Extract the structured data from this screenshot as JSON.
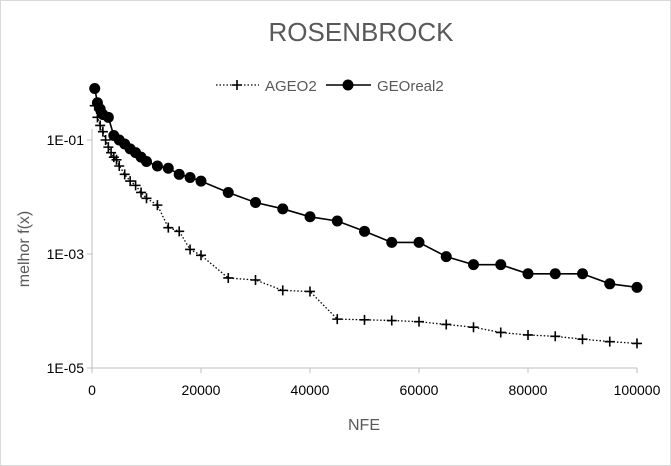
{
  "chart_data": {
    "type": "line",
    "title": "ROSENBROCK",
    "xlabel": "NFE",
    "ylabel": "melhor f(x)",
    "y_scale": "log",
    "xlim": [
      0,
      100000
    ],
    "ylim": [
      1e-05,
      1
    ],
    "x_ticks": [
      0,
      20000,
      40000,
      60000,
      80000,
      100000
    ],
    "x_tick_labels": [
      "0",
      "20000",
      "40000",
      "60000",
      "80000",
      "100000"
    ],
    "y_ticks": [
      0.1,
      0.001,
      1e-05
    ],
    "y_tick_labels": [
      "1E-01",
      "1E-03",
      "1E-05"
    ],
    "grid": false,
    "legend_position": "top",
    "series": [
      {
        "name": "AGEO2",
        "style": "dotted line, plus markers",
        "color": "#000000",
        "x": [
          500,
          1000,
          1500,
          2000,
          2500,
          3000,
          3500,
          4000,
          4500,
          5000,
          6000,
          7000,
          8000,
          9000,
          10000,
          12000,
          14000,
          16000,
          18000,
          20000,
          25000,
          30000,
          35000,
          40000,
          45000,
          50000,
          55000,
          60000,
          65000,
          70000,
          75000,
          80000,
          85000,
          90000,
          95000,
          100000
        ],
        "y": [
          0.4,
          0.25,
          0.18,
          0.14,
          0.1,
          0.075,
          0.06,
          0.05,
          0.045,
          0.035,
          0.025,
          0.019,
          0.016,
          0.012,
          0.0095,
          0.0072,
          0.0029,
          0.0025,
          0.0012,
          0.00095,
          0.00038,
          0.00035,
          0.00023,
          0.00022,
          7.2e-05,
          7e-05,
          6.8e-05,
          6.5e-05,
          5.8e-05,
          5.2e-05,
          4.2e-05,
          3.8e-05,
          3.6e-05,
          3.2e-05,
          2.9e-05,
          2.7e-05
        ]
      },
      {
        "name": "GEOreal2",
        "style": "solid line, filled circle markers",
        "color": "#000000",
        "x": [
          500,
          1000,
          1500,
          2000,
          3000,
          4000,
          5000,
          6000,
          7000,
          8000,
          9000,
          10000,
          12000,
          14000,
          16000,
          18000,
          20000,
          25000,
          30000,
          35000,
          40000,
          45000,
          50000,
          55000,
          60000,
          65000,
          70000,
          75000,
          80000,
          85000,
          90000,
          95000,
          100000
        ],
        "y": [
          0.8,
          0.45,
          0.35,
          0.28,
          0.25,
          0.12,
          0.1,
          0.085,
          0.07,
          0.06,
          0.05,
          0.042,
          0.035,
          0.032,
          0.025,
          0.022,
          0.019,
          0.012,
          0.008,
          0.0062,
          0.0045,
          0.0038,
          0.0025,
          0.0016,
          0.0016,
          0.0009,
          0.00065,
          0.00065,
          0.00045,
          0.00045,
          0.00045,
          0.0003,
          0.00026
        ]
      }
    ]
  }
}
